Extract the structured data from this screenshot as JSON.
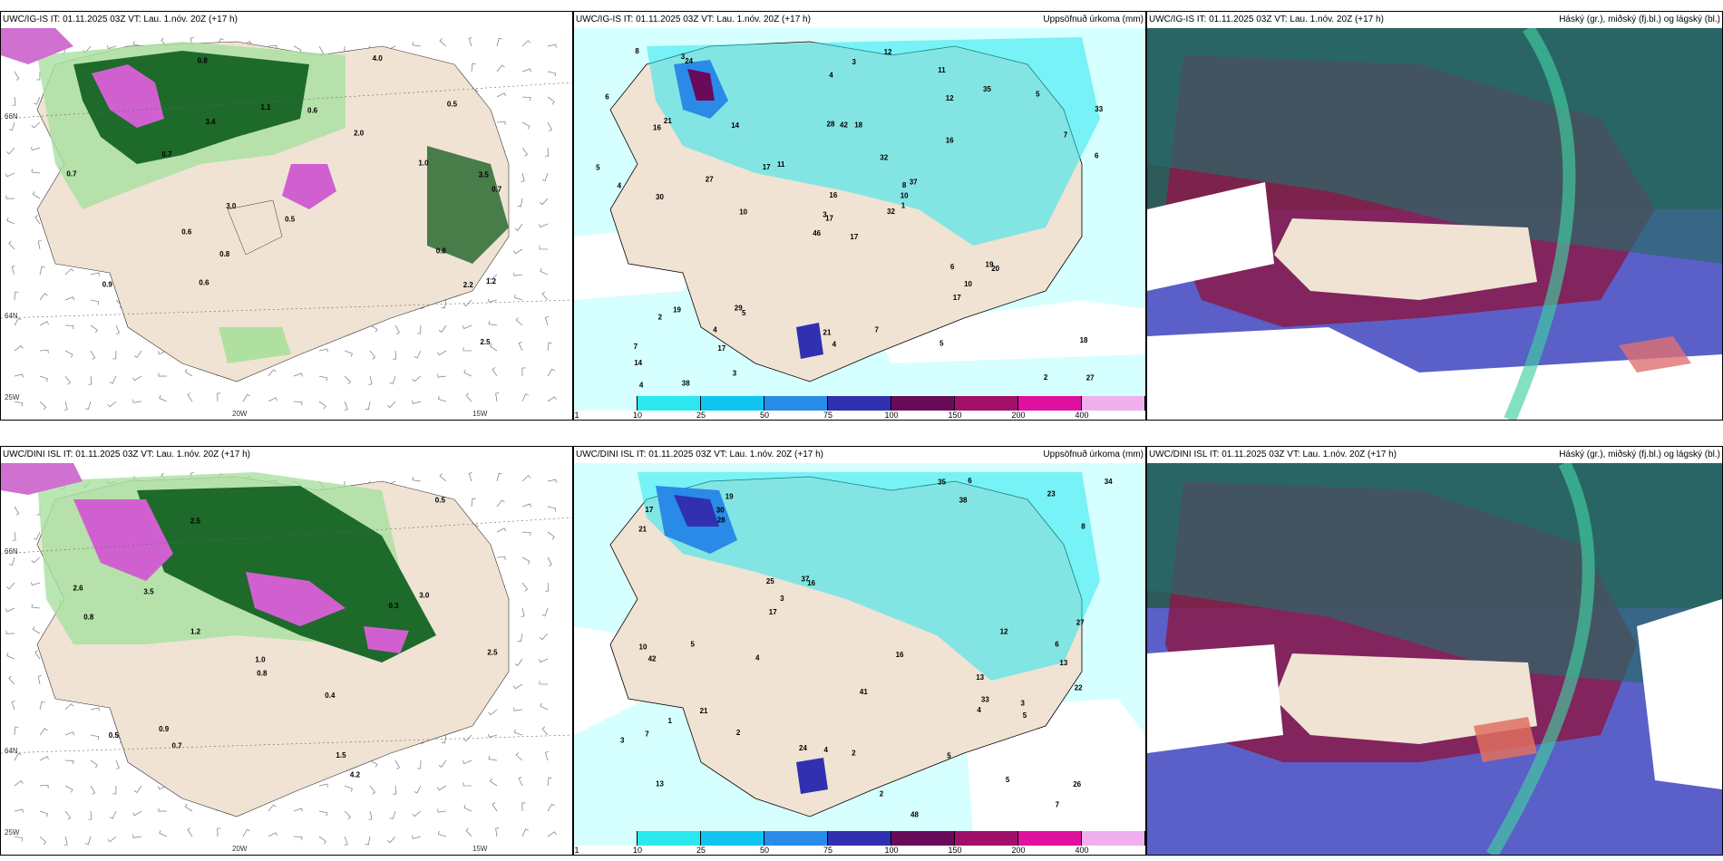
{
  "rows": [
    {
      "label": "UWC/IG-IS",
      "p1_header": "UWC/IG-IS IT: 01.11.2025 03Z VT: Lau. 1.nóv. 20Z (+17 h)",
      "p2_header": "UWC/IG-IS IT: 01.11.2025 03Z VT: Lau. 1.nóv. 20Z (+17 h)",
      "p3_header": "UWC/IG-IS IT: 01.11.2025 03Z VT: Lau. 1.nóv. 20Z (+17 h)"
    },
    {
      "label": "UWC/DINI ISL",
      "p1_header": "UWC/DINI ISL IT: 01.11.2025 03Z VT: Lau. 1.nóv. 20Z (+17 h)",
      "p2_header": "UWC/DINI ISL IT: 01.11.2025 03Z VT: Lau. 1.nóv. 20Z (+17 h)",
      "p3_header": "UWC/DINI ISL IT: 01.11.2025 03Z VT: Lau. 1.nóv. 20Z (+17 h)"
    }
  ],
  "precip_title": "Uppsöfnuð úrkoma (mm)",
  "cloud_title": "Háský (gr.), miðský (fj.bl.) og lágský (bl.)",
  "colorbar": {
    "ticks": [
      "1",
      "10",
      "25",
      "50",
      "75",
      "100",
      "150",
      "200",
      "400"
    ],
    "colors": [
      "#d6ffff",
      "#2ae8ee",
      "#10c4f0",
      "#2a8ae8",
      "#3030b0",
      "#6a0a5a",
      "#a01068",
      "#e010a0",
      "#f0b0ee"
    ]
  },
  "axis_labels": {
    "lat_66": "66N",
    "lat_64": "64N",
    "lon_25": "25W",
    "lon_20": "20W",
    "lon_15": "15W"
  },
  "precip_labels_top": [
    "17",
    "16",
    "17",
    "7",
    "8",
    "5",
    "11",
    "18",
    "12",
    "32",
    "24",
    "27",
    "30",
    "33",
    "46",
    "16",
    "38",
    "28",
    "32",
    "19",
    "11",
    "14",
    "17",
    "42",
    "37",
    "20",
    "21",
    "4",
    "4",
    "6",
    "6",
    "3",
    "21",
    "16",
    "14",
    "35",
    "29",
    "2",
    "18",
    "19",
    "12",
    "17",
    "27",
    "17",
    "3",
    "5",
    "10",
    "4",
    "4",
    "1",
    "2",
    "7",
    "6",
    "10",
    "5",
    "4",
    "3",
    "8",
    "7",
    "5",
    "3",
    "10"
  ],
  "precip_labels_bottom": [
    "13",
    "13",
    "13",
    "19",
    "16",
    "5",
    "7",
    "38",
    "25",
    "48",
    "21",
    "10",
    "17",
    "26",
    "24",
    "27",
    "41",
    "16",
    "37",
    "21",
    "34",
    "23",
    "17",
    "22",
    "35",
    "30",
    "33",
    "42",
    "28",
    "12",
    "2",
    "5",
    "3",
    "4",
    "6",
    "5",
    "4",
    "5",
    "2",
    "1",
    "8",
    "6",
    "7",
    "4",
    "3",
    "2",
    "3"
  ],
  "temp_labels_top": [
    "3.4",
    "3.5",
    "2.0",
    "0.7",
    "3.0",
    "1.2",
    "0.8",
    "4.0",
    "2.2",
    "0.5",
    "0.7",
    "0.8",
    "1.0",
    "0.6",
    "0.9",
    "0.5",
    "0.6",
    "0.7",
    "0.8",
    "1.1",
    "2.5",
    "0.6"
  ],
  "temp_labels_bottom": [
    "4.2",
    "2.5",
    "0.9",
    "3.5",
    "3.0",
    "1.5",
    "2.5",
    "1.2",
    "0.8",
    "0.7",
    "0.5",
    "2.6",
    "1.0",
    "0.4",
    "0.3",
    "0.5",
    "0.8"
  ]
}
